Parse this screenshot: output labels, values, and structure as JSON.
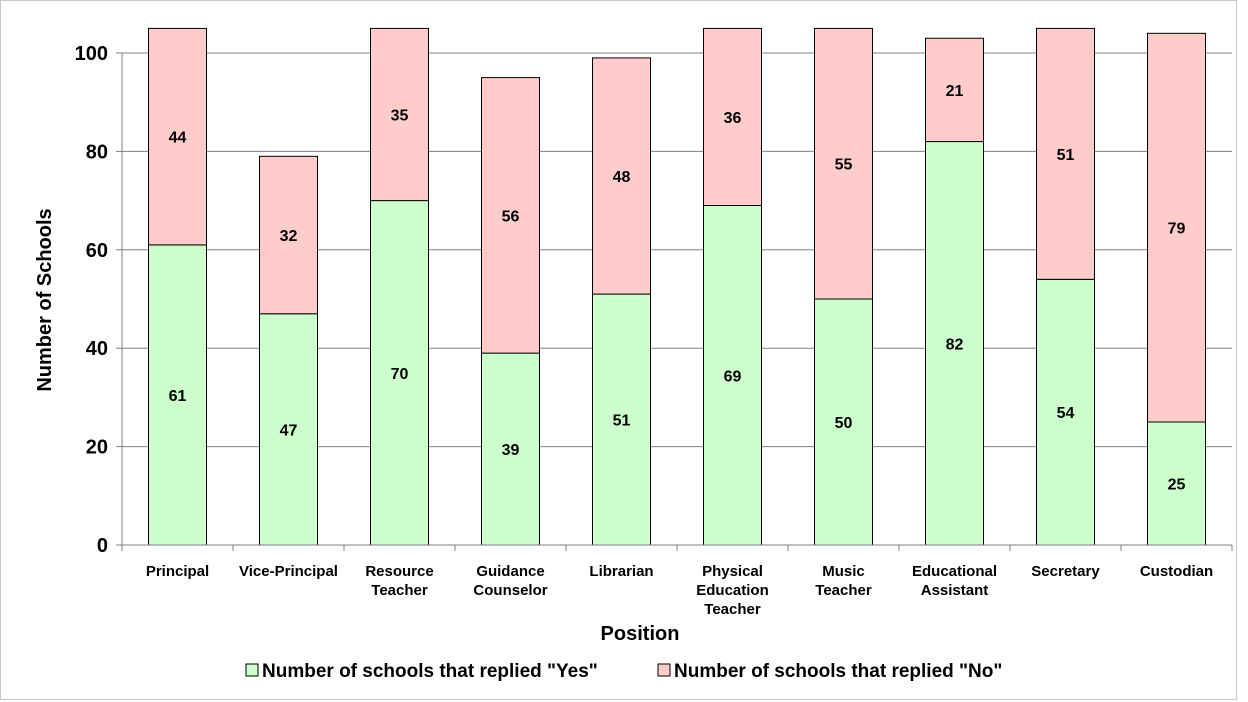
{
  "colors": {
    "yes_fill": "#ccffcc",
    "no_fill": "#ffcccc",
    "bar_stroke": "#000000",
    "grid": "#808080"
  },
  "chart_data": {
    "type": "bar",
    "stacked": true,
    "categories": [
      [
        "Principal"
      ],
      [
        "Vice-Principal"
      ],
      [
        "Resource",
        "Teacher"
      ],
      [
        "Guidance",
        "Counselor"
      ],
      [
        "Librarian"
      ],
      [
        "Physical",
        "Education",
        "Teacher"
      ],
      [
        "Music",
        "Teacher"
      ],
      [
        "Educational",
        "Assistant"
      ],
      [
        "Secretary"
      ],
      [
        "Custodian"
      ]
    ],
    "series": [
      {
        "name": "Number of schools that replied \"Yes\"",
        "values": [
          61,
          47,
          70,
          39,
          51,
          69,
          50,
          82,
          54,
          25
        ]
      },
      {
        "name": "Number of schools that replied \"No\"",
        "values": [
          44,
          32,
          35,
          56,
          48,
          36,
          55,
          21,
          51,
          79
        ]
      }
    ],
    "xlabel": "Position",
    "ylabel": "Number of Schools",
    "ylim": [
      0,
      100
    ],
    "yticks": [
      0,
      20,
      40,
      60,
      80,
      100
    ],
    "grid": true,
    "legend_position": "bottom"
  }
}
